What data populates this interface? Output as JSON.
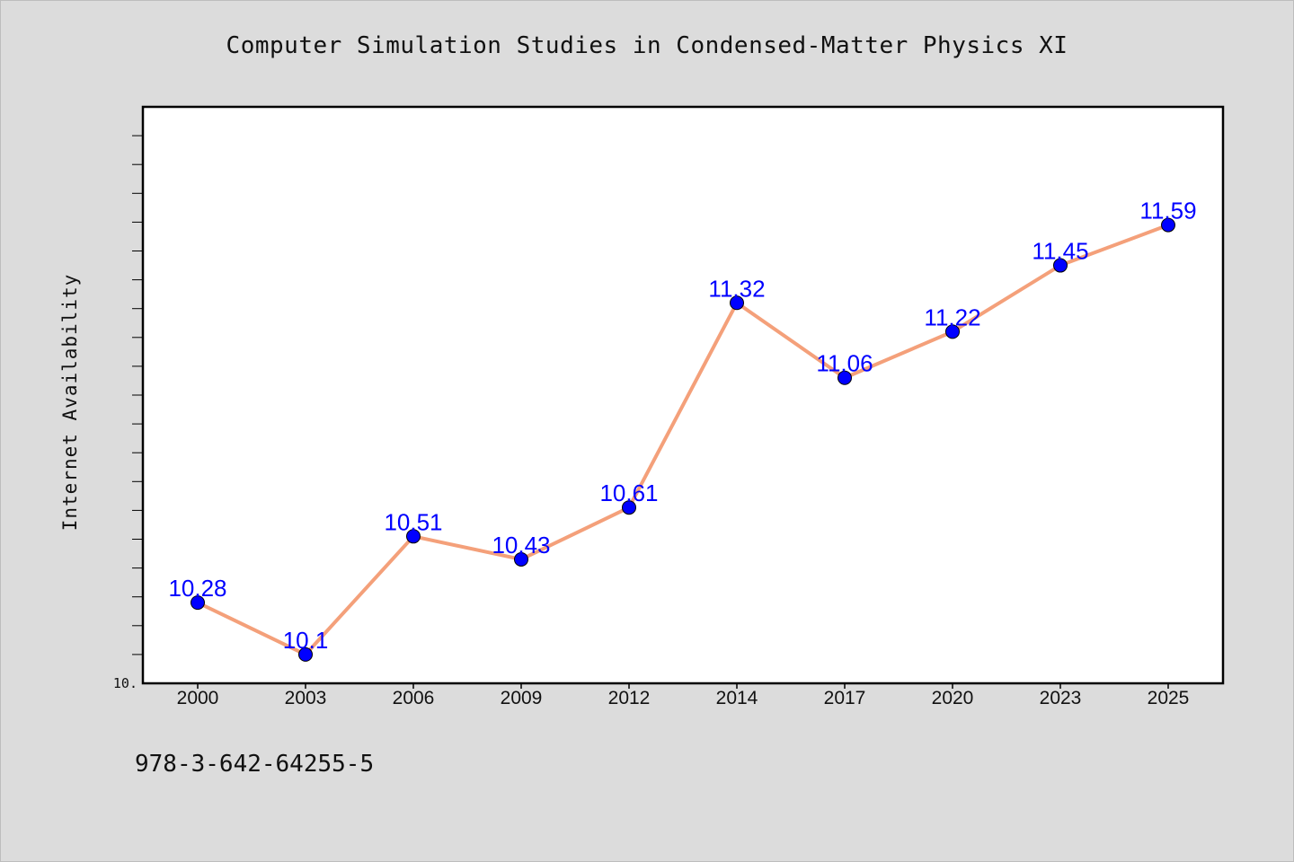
{
  "title": "Computer Simulation Studies in Condensed-Matter Physics XI",
  "footer": "978-3-642-64255-5",
  "colors": {
    "background": "#dcdcdc",
    "plot_background": "#ffffff",
    "line": "#f4a07a",
    "marker": "#0000ff",
    "data_label": "#0000ff"
  },
  "chart_data": {
    "type": "line",
    "title": "Computer Simulation Studies in Condensed-Matter Physics XI",
    "xlabel": "",
    "ylabel": "Internet Availability",
    "categories": [
      "2000",
      "2003",
      "2006",
      "2009",
      "2012",
      "2014",
      "2017",
      "2020",
      "2023",
      "2025"
    ],
    "series": [
      {
        "values": [
          10.28,
          10.1,
          10.51,
          10.43,
          10.61,
          11.32,
          11.06,
          11.22,
          11.45,
          11.59
        ],
        "labels": [
          "10.28",
          "10.1",
          "10.51",
          "10.43",
          "10.61",
          "11.32",
          "11.06",
          "11.22",
          "11.45",
          "11.59"
        ]
      }
    ],
    "ylim": [
      10.0,
      12.0
    ],
    "ytick_labels": [
      "10."
    ],
    "grid": false,
    "legend": "none"
  }
}
